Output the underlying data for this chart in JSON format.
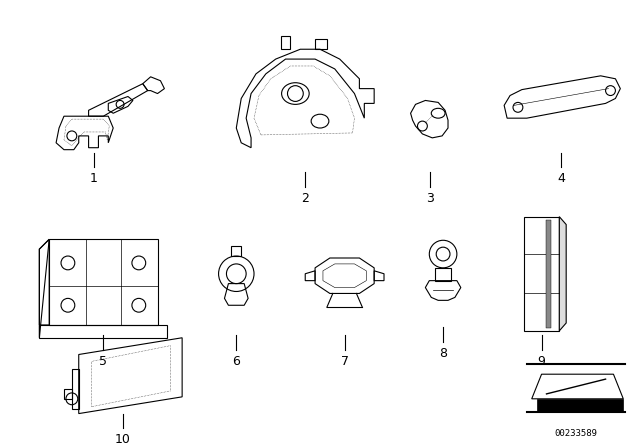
{
  "bg_color": "#ffffff",
  "fig_width": 6.4,
  "fig_height": 4.48,
  "dpi": 100,
  "watermark": "00233589",
  "line_color": "#000000",
  "lw": 0.8
}
